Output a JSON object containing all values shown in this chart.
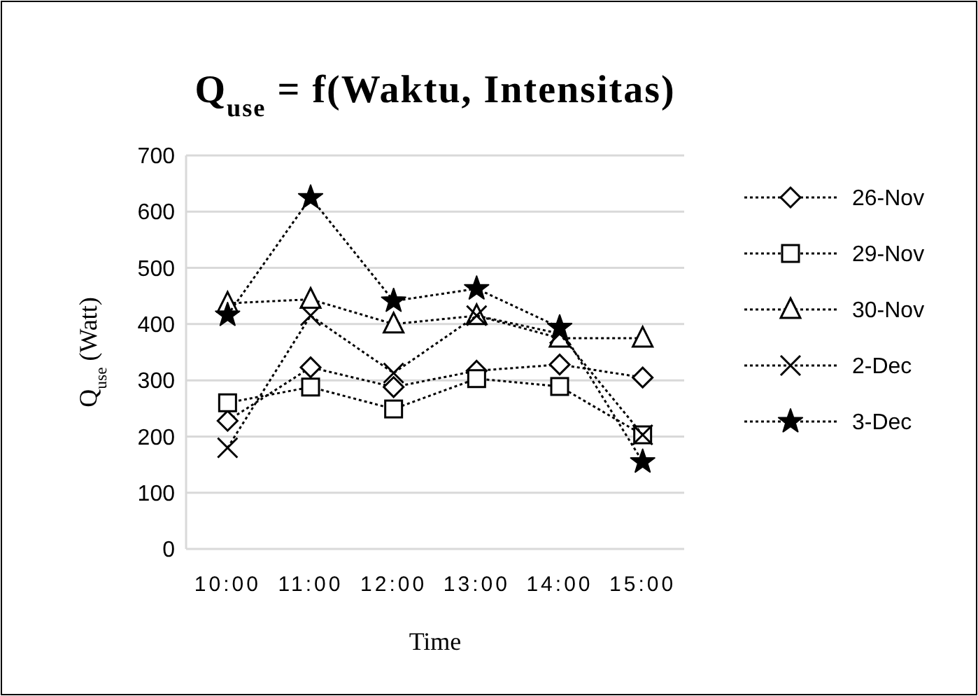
{
  "chart_data": {
    "type": "line",
    "title": "Q$_{use}$ = f(Waktu, Intensitas)",
    "xlabel": "Time",
    "ylabel": "Q$_{use}$ (Watt)",
    "categories": [
      "10:00",
      "11:00",
      "12:00",
      "13:00",
      "14:00",
      "15:00"
    ],
    "ylim": [
      0,
      700
    ],
    "yticks": [
      0,
      100,
      200,
      300,
      400,
      500,
      600,
      700
    ],
    "grid": "y",
    "legend": "right",
    "line_style": "dotted",
    "series": [
      {
        "name": "26-Nov",
        "color": "#000000",
        "marker": "diamond",
        "values": [
          228,
          323,
          288,
          317,
          328,
          305
        ]
      },
      {
        "name": "29-Nov",
        "color": "#000000",
        "marker": "square",
        "values": [
          260,
          288,
          249,
          303,
          289,
          203
        ]
      },
      {
        "name": "30-Nov",
        "color": "#000000",
        "marker": "triangle",
        "values": [
          437,
          444,
          400,
          415,
          375,
          375
        ]
      },
      {
        "name": "2-Dec",
        "color": "#000000",
        "marker": "cross",
        "values": [
          180,
          415,
          313,
          415,
          383,
          203
        ]
      },
      {
        "name": "3-Dec",
        "color": "#000000",
        "marker": "star",
        "values": [
          416,
          625,
          441,
          463,
          394,
          155
        ]
      }
    ]
  }
}
